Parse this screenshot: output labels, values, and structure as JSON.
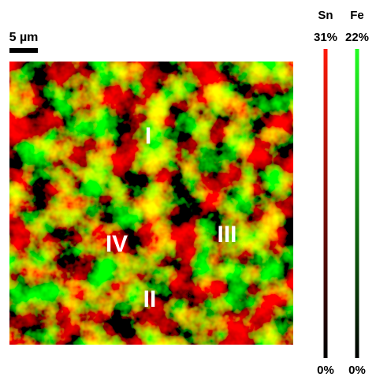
{
  "scale_bar": {
    "label": "5 µm"
  },
  "regions": [
    "I",
    "II",
    "III",
    "IV"
  ],
  "color_bars": [
    {
      "element": "Sn",
      "max": "31%",
      "min": "0%",
      "color": "#ff1a0a"
    },
    {
      "element": "Fe",
      "max": "22%",
      "min": "0%",
      "color": "#22ff22"
    }
  ]
}
